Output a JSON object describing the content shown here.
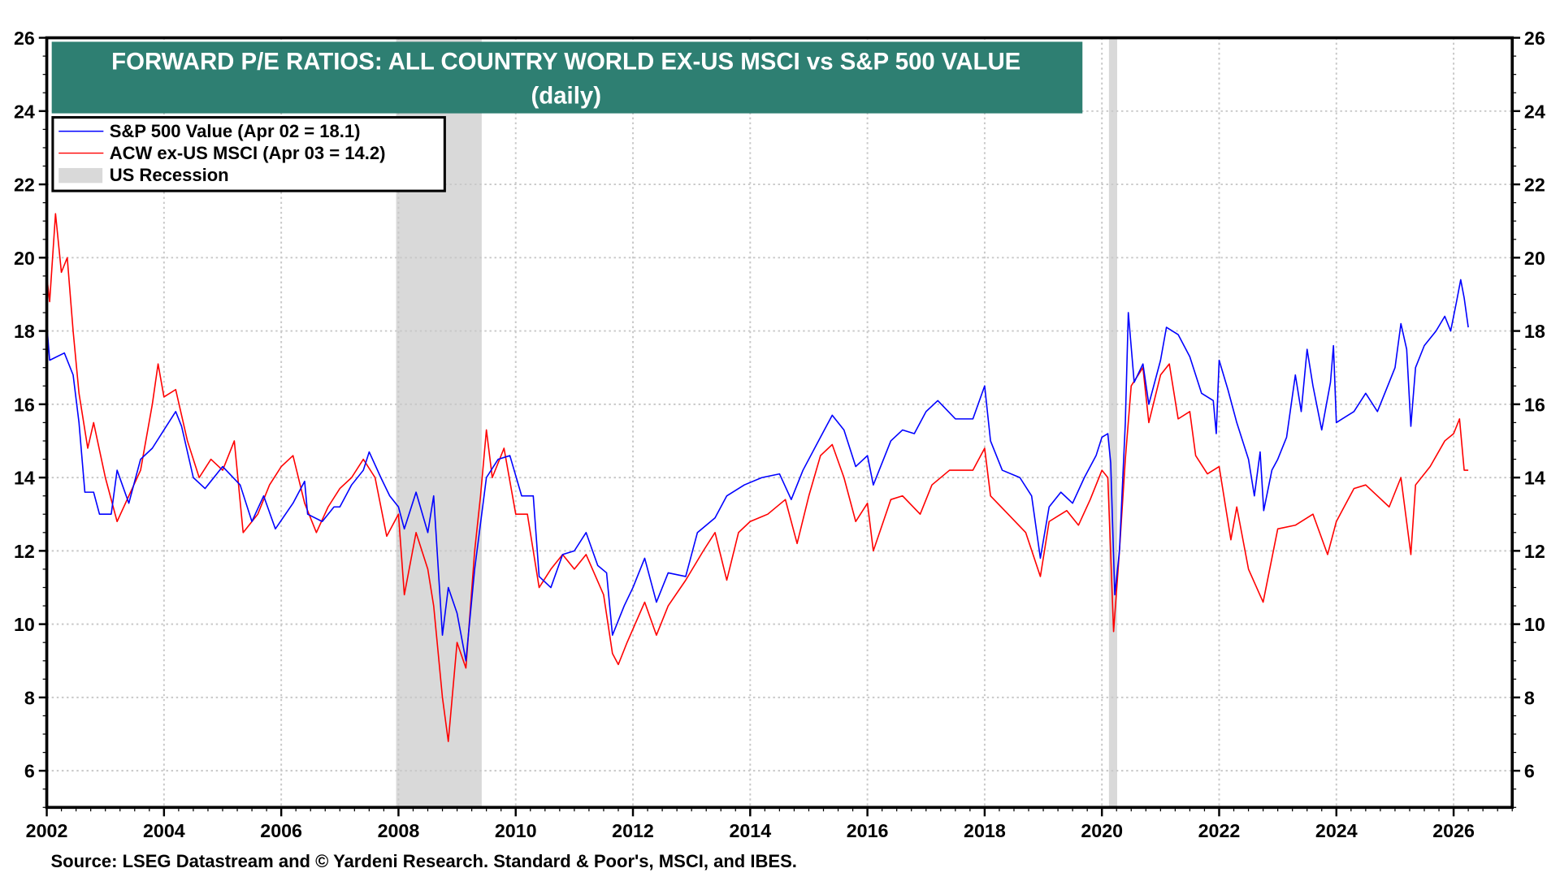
{
  "chart_data": {
    "type": "line",
    "title": "FORWARD P/E RATIOS: ALL COUNTRY WORLD EX-US MSCI vs S&P 500 VALUE",
    "subtitle": "(daily)",
    "source": "Source: LSEG Datastream and © Yardeni Research. Standard & Poor's, MSCI, and IBES.",
    "xlim": [
      2002,
      2027
    ],
    "ylim": [
      5,
      26
    ],
    "x_ticks": [
      "2002",
      "2004",
      "2006",
      "2008",
      "2010",
      "2012",
      "2014",
      "2016",
      "2018",
      "2020",
      "2022",
      "2024",
      "2026"
    ],
    "y_ticks": [
      "6",
      "8",
      "10",
      "12",
      "14",
      "16",
      "18",
      "20",
      "22",
      "24",
      "26"
    ],
    "grid": true,
    "legend_placement": "top-left",
    "legend_recession_label": "US Recession",
    "recessions": [
      [
        2007.96,
        2009.42
      ],
      [
        2020.12,
        2020.26
      ]
    ],
    "colors": {
      "title_bg": "#2e7f72",
      "recession": "#d9d9d9"
    },
    "series": [
      {
        "name": "S&P 500 Value (Apr 02 = 18.1)",
        "color": "#0000ff",
        "points": [
          [
            2002.0,
            18.2
          ],
          [
            2002.05,
            17.2
          ],
          [
            2002.3,
            17.4
          ],
          [
            2002.45,
            16.8
          ],
          [
            2002.55,
            15.5
          ],
          [
            2002.65,
            13.6
          ],
          [
            2002.8,
            13.6
          ],
          [
            2002.9,
            13.0
          ],
          [
            2003.1,
            13.0
          ],
          [
            2003.2,
            14.2
          ],
          [
            2003.4,
            13.3
          ],
          [
            2003.6,
            14.5
          ],
          [
            2003.8,
            14.8
          ],
          [
            2004.0,
            15.3
          ],
          [
            2004.2,
            15.8
          ],
          [
            2004.3,
            15.4
          ],
          [
            2004.5,
            14.0
          ],
          [
            2004.7,
            13.7
          ],
          [
            2005.0,
            14.3
          ],
          [
            2005.3,
            13.8
          ],
          [
            2005.5,
            12.8
          ],
          [
            2005.7,
            13.5
          ],
          [
            2005.9,
            12.6
          ],
          [
            2006.2,
            13.3
          ],
          [
            2006.4,
            13.9
          ],
          [
            2006.45,
            13.0
          ],
          [
            2006.7,
            12.8
          ],
          [
            2006.9,
            13.2
          ],
          [
            2007.0,
            13.2
          ],
          [
            2007.2,
            13.8
          ],
          [
            2007.4,
            14.2
          ],
          [
            2007.5,
            14.7
          ],
          [
            2007.7,
            14.0
          ],
          [
            2007.85,
            13.5
          ],
          [
            2008.0,
            13.2
          ],
          [
            2008.1,
            12.6
          ],
          [
            2008.3,
            13.6
          ],
          [
            2008.5,
            12.5
          ],
          [
            2008.6,
            13.5
          ],
          [
            2008.75,
            9.7
          ],
          [
            2008.85,
            11.0
          ],
          [
            2009.0,
            10.3
          ],
          [
            2009.15,
            9.0
          ],
          [
            2009.3,
            11.5
          ],
          [
            2009.5,
            14.0
          ],
          [
            2009.7,
            14.5
          ],
          [
            2009.9,
            14.6
          ],
          [
            2010.1,
            13.5
          ],
          [
            2010.3,
            13.5
          ],
          [
            2010.4,
            11.3
          ],
          [
            2010.6,
            11.0
          ],
          [
            2010.8,
            11.9
          ],
          [
            2011.0,
            12.0
          ],
          [
            2011.2,
            12.5
          ],
          [
            2011.4,
            11.6
          ],
          [
            2011.55,
            11.4
          ],
          [
            2011.65,
            9.7
          ],
          [
            2011.85,
            10.5
          ],
          [
            2012.0,
            11.0
          ],
          [
            2012.2,
            11.8
          ],
          [
            2012.4,
            10.6
          ],
          [
            2012.6,
            11.4
          ],
          [
            2012.9,
            11.3
          ],
          [
            2013.1,
            12.5
          ],
          [
            2013.4,
            12.9
          ],
          [
            2013.6,
            13.5
          ],
          [
            2013.9,
            13.8
          ],
          [
            2014.2,
            14.0
          ],
          [
            2014.5,
            14.1
          ],
          [
            2014.7,
            13.4
          ],
          [
            2014.9,
            14.2
          ],
          [
            2015.2,
            15.1
          ],
          [
            2015.4,
            15.7
          ],
          [
            2015.6,
            15.3
          ],
          [
            2015.8,
            14.3
          ],
          [
            2016.0,
            14.6
          ],
          [
            2016.1,
            13.8
          ],
          [
            2016.4,
            15.0
          ],
          [
            2016.6,
            15.3
          ],
          [
            2016.8,
            15.2
          ],
          [
            2017.0,
            15.8
          ],
          [
            2017.2,
            16.1
          ],
          [
            2017.5,
            15.6
          ],
          [
            2017.8,
            15.6
          ],
          [
            2018.0,
            16.5
          ],
          [
            2018.1,
            15.0
          ],
          [
            2018.3,
            14.2
          ],
          [
            2018.6,
            14.0
          ],
          [
            2018.8,
            13.5
          ],
          [
            2018.95,
            11.8
          ],
          [
            2019.1,
            13.2
          ],
          [
            2019.3,
            13.6
          ],
          [
            2019.5,
            13.3
          ],
          [
            2019.7,
            14.0
          ],
          [
            2019.9,
            14.6
          ],
          [
            2020.0,
            15.1
          ],
          [
            2020.1,
            15.2
          ],
          [
            2020.15,
            14.4
          ],
          [
            2020.22,
            10.8
          ],
          [
            2020.3,
            12.0
          ],
          [
            2020.4,
            15.5
          ],
          [
            2020.45,
            18.5
          ],
          [
            2020.55,
            16.6
          ],
          [
            2020.7,
            17.1
          ],
          [
            2020.8,
            16.0
          ],
          [
            2020.9,
            16.6
          ],
          [
            2021.0,
            17.2
          ],
          [
            2021.1,
            18.1
          ],
          [
            2021.3,
            17.9
          ],
          [
            2021.5,
            17.3
          ],
          [
            2021.7,
            16.3
          ],
          [
            2021.9,
            16.1
          ],
          [
            2021.95,
            15.2
          ],
          [
            2022.0,
            17.2
          ],
          [
            2022.15,
            16.4
          ],
          [
            2022.3,
            15.5
          ],
          [
            2022.5,
            14.5
          ],
          [
            2022.6,
            13.5
          ],
          [
            2022.7,
            14.7
          ],
          [
            2022.76,
            13.1
          ],
          [
            2022.9,
            14.2
          ],
          [
            2023.0,
            14.5
          ],
          [
            2023.15,
            15.1
          ],
          [
            2023.3,
            16.8
          ],
          [
            2023.4,
            15.8
          ],
          [
            2023.5,
            17.5
          ],
          [
            2023.6,
            16.5
          ],
          [
            2023.75,
            15.3
          ],
          [
            2023.9,
            16.6
          ],
          [
            2023.95,
            17.6
          ],
          [
            2024.0,
            15.5
          ],
          [
            2024.3,
            15.8
          ],
          [
            2024.5,
            16.3
          ],
          [
            2024.7,
            15.8
          ],
          [
            2024.9,
            16.6
          ],
          [
            2025.0,
            17.0
          ],
          [
            2025.1,
            18.2
          ],
          [
            2025.2,
            17.5
          ],
          [
            2025.27,
            15.4
          ],
          [
            2025.35,
            17.0
          ],
          [
            2025.5,
            17.6
          ],
          [
            2025.7,
            18.0
          ],
          [
            2025.85,
            18.4
          ],
          [
            2025.95,
            18.0
          ],
          [
            2026.05,
            18.8
          ],
          [
            2026.12,
            19.4
          ],
          [
            2026.18,
            18.9
          ],
          [
            2026.25,
            18.1
          ]
        ]
      },
      {
        "name": "ACW ex-US MSCI (Apr 03 = 14.2)",
        "color": "#ff0000",
        "points": [
          [
            2002.0,
            19.5
          ],
          [
            2002.05,
            18.8
          ],
          [
            2002.15,
            21.2
          ],
          [
            2002.25,
            19.6
          ],
          [
            2002.35,
            20.0
          ],
          [
            2002.45,
            18.0
          ],
          [
            2002.55,
            16.3
          ],
          [
            2002.7,
            14.8
          ],
          [
            2002.8,
            15.5
          ],
          [
            2003.0,
            14.0
          ],
          [
            2003.2,
            12.8
          ],
          [
            2003.4,
            13.5
          ],
          [
            2003.6,
            14.2
          ],
          [
            2003.8,
            16.0
          ],
          [
            2003.9,
            17.1
          ],
          [
            2004.0,
            16.2
          ],
          [
            2004.2,
            16.4
          ],
          [
            2004.4,
            15.0
          ],
          [
            2004.6,
            14.0
          ],
          [
            2004.8,
            14.5
          ],
          [
            2005.0,
            14.2
          ],
          [
            2005.2,
            15.0
          ],
          [
            2005.35,
            12.5
          ],
          [
            2005.6,
            13.0
          ],
          [
            2005.8,
            13.8
          ],
          [
            2006.0,
            14.3
          ],
          [
            2006.2,
            14.6
          ],
          [
            2006.4,
            13.3
          ],
          [
            2006.6,
            12.5
          ],
          [
            2006.8,
            13.2
          ],
          [
            2007.0,
            13.7
          ],
          [
            2007.2,
            14.0
          ],
          [
            2007.4,
            14.5
          ],
          [
            2007.6,
            14.0
          ],
          [
            2007.8,
            12.4
          ],
          [
            2008.0,
            13.0
          ],
          [
            2008.1,
            10.8
          ],
          [
            2008.3,
            12.5
          ],
          [
            2008.5,
            11.5
          ],
          [
            2008.6,
            10.5
          ],
          [
            2008.75,
            8.0
          ],
          [
            2008.85,
            6.8
          ],
          [
            2009.0,
            9.5
          ],
          [
            2009.15,
            8.8
          ],
          [
            2009.3,
            12.0
          ],
          [
            2009.4,
            13.5
          ],
          [
            2009.5,
            15.3
          ],
          [
            2009.6,
            14.0
          ],
          [
            2009.8,
            14.8
          ],
          [
            2010.0,
            13.0
          ],
          [
            2010.2,
            13.0
          ],
          [
            2010.4,
            11.0
          ],
          [
            2010.6,
            11.5
          ],
          [
            2010.8,
            11.9
          ],
          [
            2011.0,
            11.5
          ],
          [
            2011.2,
            11.9
          ],
          [
            2011.5,
            10.8
          ],
          [
            2011.65,
            9.2
          ],
          [
            2011.75,
            8.9
          ],
          [
            2011.9,
            9.5
          ],
          [
            2012.2,
            10.6
          ],
          [
            2012.4,
            9.7
          ],
          [
            2012.6,
            10.5
          ],
          [
            2012.9,
            11.2
          ],
          [
            2013.2,
            12.0
          ],
          [
            2013.4,
            12.5
          ],
          [
            2013.6,
            11.2
          ],
          [
            2013.8,
            12.5
          ],
          [
            2014.0,
            12.8
          ],
          [
            2014.3,
            13.0
          ],
          [
            2014.6,
            13.4
          ],
          [
            2014.8,
            12.2
          ],
          [
            2015.0,
            13.5
          ],
          [
            2015.2,
            14.6
          ],
          [
            2015.4,
            14.9
          ],
          [
            2015.6,
            14.0
          ],
          [
            2015.8,
            12.8
          ],
          [
            2016.0,
            13.3
          ],
          [
            2016.1,
            12.0
          ],
          [
            2016.4,
            13.4
          ],
          [
            2016.6,
            13.5
          ],
          [
            2016.9,
            13.0
          ],
          [
            2017.1,
            13.8
          ],
          [
            2017.4,
            14.2
          ],
          [
            2017.8,
            14.2
          ],
          [
            2018.0,
            14.8
          ],
          [
            2018.1,
            13.5
          ],
          [
            2018.4,
            13.0
          ],
          [
            2018.7,
            12.5
          ],
          [
            2018.95,
            11.3
          ],
          [
            2019.1,
            12.8
          ],
          [
            2019.4,
            13.1
          ],
          [
            2019.6,
            12.7
          ],
          [
            2019.8,
            13.4
          ],
          [
            2020.0,
            14.2
          ],
          [
            2020.1,
            14.0
          ],
          [
            2020.2,
            9.8
          ],
          [
            2020.3,
            12.0
          ],
          [
            2020.4,
            14.5
          ],
          [
            2020.5,
            16.5
          ],
          [
            2020.7,
            17.0
          ],
          [
            2020.8,
            15.5
          ],
          [
            2021.0,
            16.8
          ],
          [
            2021.15,
            17.1
          ],
          [
            2021.3,
            15.6
          ],
          [
            2021.5,
            15.8
          ],
          [
            2021.6,
            14.6
          ],
          [
            2021.8,
            14.1
          ],
          [
            2022.0,
            14.3
          ],
          [
            2022.2,
            12.3
          ],
          [
            2022.3,
            13.2
          ],
          [
            2022.5,
            11.5
          ],
          [
            2022.75,
            10.6
          ],
          [
            2023.0,
            12.6
          ],
          [
            2023.3,
            12.7
          ],
          [
            2023.6,
            13.0
          ],
          [
            2023.85,
            11.9
          ],
          [
            2024.0,
            12.8
          ],
          [
            2024.3,
            13.7
          ],
          [
            2024.5,
            13.8
          ],
          [
            2024.7,
            13.5
          ],
          [
            2024.9,
            13.2
          ],
          [
            2025.1,
            14.0
          ],
          [
            2025.27,
            11.9
          ],
          [
            2025.35,
            13.8
          ],
          [
            2025.6,
            14.3
          ],
          [
            2025.85,
            15.0
          ],
          [
            2026.0,
            15.2
          ],
          [
            2026.1,
            15.6
          ],
          [
            2026.18,
            14.2
          ],
          [
            2026.25,
            14.2
          ]
        ]
      }
    ]
  }
}
